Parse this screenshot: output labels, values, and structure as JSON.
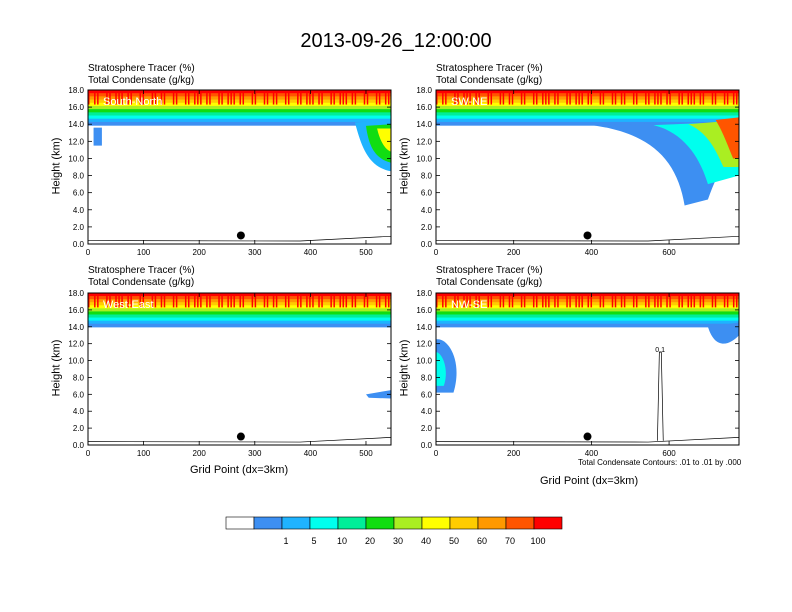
{
  "title": "2013-09-26_12:00:00",
  "header_line1": "Stratosphere Tracer   (%)",
  "header_line2": "Total Condensate   (g/kg)",
  "ylabel": "Height (km)",
  "xlabel": "Grid Point (dx=3km)",
  "footnote": "Total Condensate Contours: .01 to .01 by .000",
  "colors": {
    "levels": [
      "#ffffff",
      "#3d8ff2",
      "#1fb3ff",
      "#00ffee",
      "#00ee99",
      "#11dd11",
      "#aaee22",
      "#ffff00",
      "#ffcc00",
      "#ff9900",
      "#ff5500",
      "#ff0000"
    ]
  },
  "colorbar_labels": [
    "1",
    "5",
    "10",
    "20",
    "30",
    "40",
    "50",
    "60",
    "70",
    "100"
  ],
  "chart_data": [
    {
      "type": "heatmap",
      "name": "South-North",
      "xlim": [
        0,
        545
      ],
      "ylim": [
        0,
        18
      ],
      "xticks": [
        "0",
        "100",
        "200",
        "300",
        "400",
        "500"
      ],
      "yticks": [
        "0.0",
        "2.0",
        "4.0",
        "6.0",
        "8.0",
        "10.0",
        "12.0",
        "14.0",
        "16.0",
        "18.0"
      ],
      "marker": {
        "x": 275,
        "y": 1.0
      },
      "tracer_top_km": 15.5,
      "tracer_base_km": 13.9
    },
    {
      "type": "heatmap",
      "name": "SW-NE",
      "xlim": [
        0,
        780
      ],
      "ylim": [
        0,
        18
      ],
      "xticks": [
        "0",
        "200",
        "400",
        "600"
      ],
      "yticks": [
        "0.0",
        "2.0",
        "4.0",
        "6.0",
        "8.0",
        "10.0",
        "12.0",
        "14.0",
        "16.0",
        "18.0"
      ],
      "marker": {
        "x": 390,
        "y": 1.0
      },
      "tracer_top_km": 15.5,
      "tracer_base_km": 13.9
    },
    {
      "type": "heatmap",
      "name": "West-East",
      "xlim": [
        0,
        545
      ],
      "ylim": [
        0,
        18
      ],
      "xticks": [
        "0",
        "100",
        "200",
        "300",
        "400",
        "500"
      ],
      "yticks": [
        "0.0",
        "2.0",
        "4.0",
        "6.0",
        "8.0",
        "10.0",
        "12.0",
        "14.0",
        "16.0",
        "18.0"
      ],
      "marker": {
        "x": 275,
        "y": 1.0
      },
      "tracer_top_km": 15.3,
      "tracer_base_km": 14.0
    },
    {
      "type": "heatmap",
      "name": "NW-SE",
      "xlim": [
        0,
        780
      ],
      "ylim": [
        0,
        18
      ],
      "xticks": [
        "0",
        "200",
        "400",
        "600"
      ],
      "yticks": [
        "0.0",
        "2.0",
        "4.0",
        "6.0",
        "8.0",
        "10.0",
        "12.0",
        "14.0",
        "16.0",
        "18.0"
      ],
      "marker": {
        "x": 390,
        "y": 1.0
      },
      "tracer_top_km": 15.5,
      "tracer_base_km": 14.0,
      "contour_label": "0.1"
    }
  ]
}
